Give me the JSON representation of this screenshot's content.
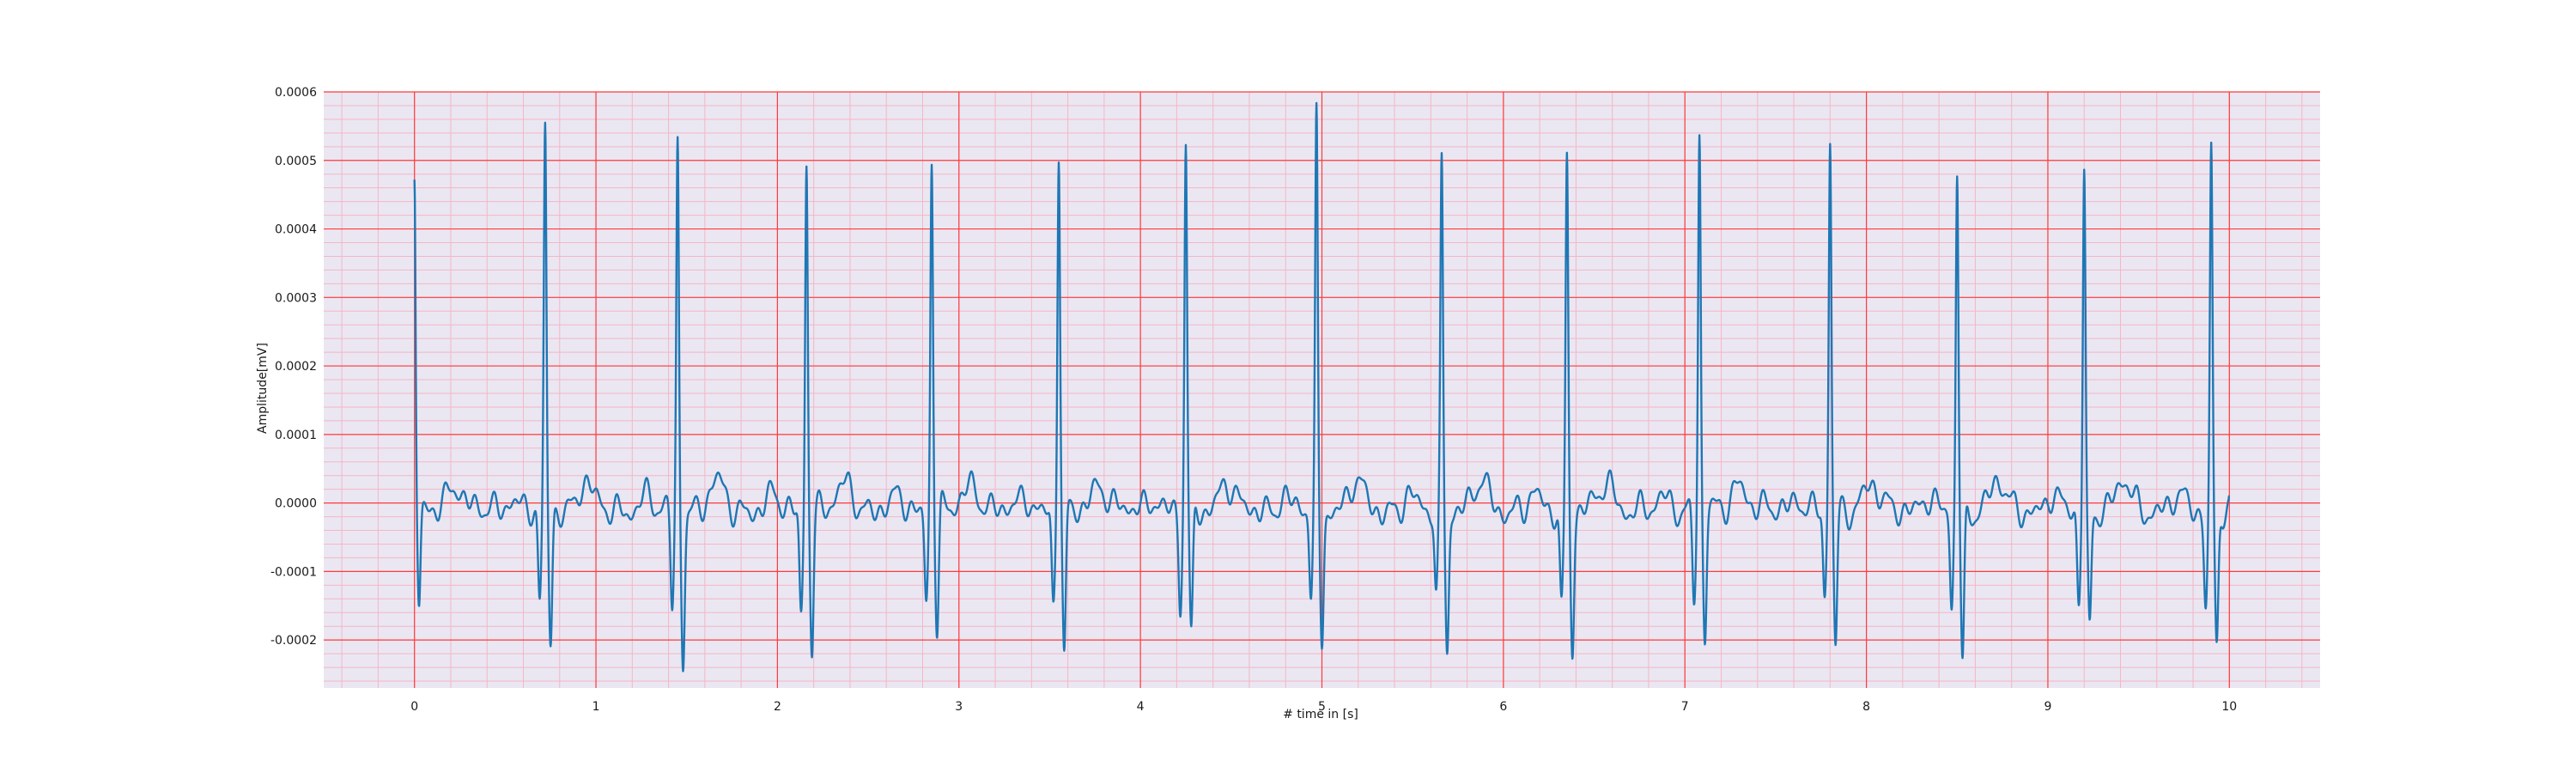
{
  "chart_data": {
    "type": "line",
    "title": "",
    "xlabel": "# time in [s]",
    "ylabel": "Amplitude[mV]",
    "xlim": [
      -0.5,
      10.5
    ],
    "ylim": [
      -0.00027,
      0.0006
    ],
    "x_ticks": [
      0,
      1,
      2,
      3,
      4,
      5,
      6,
      7,
      8,
      9,
      10
    ],
    "x_tick_labels": [
      "0",
      "1",
      "2",
      "3",
      "4",
      "5",
      "6",
      "7",
      "8",
      "9",
      "10"
    ],
    "y_ticks": [
      -0.0002,
      -0.0001,
      0.0,
      0.0001,
      0.0002,
      0.0003,
      0.0004,
      0.0005,
      0.0006
    ],
    "y_tick_labels": [
      "-0.0002",
      "-0.0001",
      "0.0000",
      "0.0001",
      "0.0002",
      "0.0003",
      "0.0004",
      "0.0005",
      "0.0006"
    ],
    "grid": {
      "major": true,
      "minor": true,
      "major_color": "#ff3b3b",
      "minor_color": "#f4b6c6",
      "background": "#eae7f2"
    },
    "series": [
      {
        "color": "#1f77b4",
        "r_peaks": [
          {
            "t": 0.0,
            "r": 0.000465,
            "q": -0.00015,
            "s": -0.00015
          },
          {
            "t": 0.72,
            "r": 0.00055,
            "q": -0.00014,
            "s": -0.000195
          },
          {
            "t": 1.45,
            "r": 0.00054,
            "q": -0.00014,
            "s": -0.000212
          },
          {
            "t": 2.16,
            "r": 0.000518,
            "q": -0.000148,
            "s": -0.000202
          },
          {
            "t": 2.85,
            "r": 0.000515,
            "q": -0.000125,
            "s": -0.00018
          },
          {
            "t": 3.55,
            "r": 0.000525,
            "q": -0.000135,
            "s": -0.000228
          },
          {
            "t": 4.25,
            "r": 0.000527,
            "q": -0.00014,
            "s": -0.000192
          },
          {
            "t": 4.97,
            "r": 0.00057,
            "q": -0.00013,
            "s": -0.000185
          },
          {
            "t": 5.66,
            "r": 0.000517,
            "q": -0.00013,
            "s": -0.0002
          },
          {
            "t": 6.35,
            "r": 0.000518,
            "q": -0.00014,
            "s": -0.0002
          },
          {
            "t": 7.08,
            "r": 0.000552,
            "q": -0.00013,
            "s": -0.000195
          },
          {
            "t": 7.8,
            "r": 0.000535,
            "q": -0.00013,
            "s": -0.000203
          },
          {
            "t": 8.5,
            "r": 0.00049,
            "q": -0.000145,
            "s": -0.000228
          },
          {
            "t": 9.2,
            "r": 0.000498,
            "q": -0.000135,
            "s": -0.00017
          },
          {
            "t": 9.9,
            "r": 0.00053,
            "q": -0.000135,
            "s": -0.0002
          }
        ],
        "t_end": 10.0,
        "baseline_end": 1e-05
      }
    ]
  }
}
